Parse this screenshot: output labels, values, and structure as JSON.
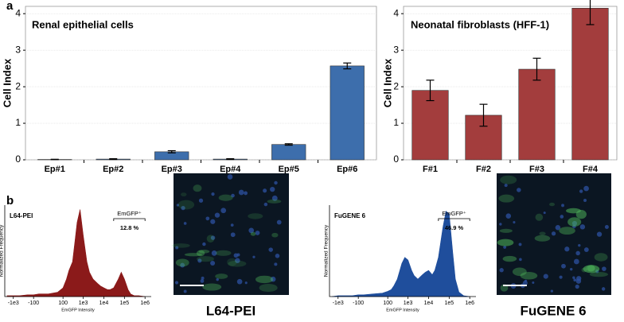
{
  "panel_labels": [
    "a",
    "b"
  ],
  "image_captions": [
    "L64-PEI",
    "FuGENE 6"
  ],
  "chart_data": [
    {
      "type": "bar",
      "title": "Renal epithelial cells",
      "ylabel": "Cell Index",
      "categories": [
        "Ep#1",
        "Ep#2",
        "Ep#3",
        "Ep#4",
        "Ep#5",
        "Ep#6"
      ],
      "values": [
        0.01,
        0.02,
        0.22,
        0.02,
        0.42,
        2.57
      ],
      "errors": [
        0.005,
        0.01,
        0.03,
        0.01,
        0.02,
        0.08
      ],
      "color": "#3d6eac",
      "ylim": [
        0,
        4.2
      ],
      "yticks": [
        0,
        1,
        2,
        3,
        4
      ],
      "grid": true
    },
    {
      "type": "bar",
      "title": "Neonatal fibroblasts (HFF-1)",
      "ylabel": "Cell Index",
      "categories": [
        "F#1",
        "F#2",
        "F#3",
        "F#4"
      ],
      "values": [
        1.9,
        1.22,
        2.48,
        4.15
      ],
      "errors": [
        0.28,
        0.3,
        0.3,
        0.45
      ],
      "color": "#a33d3d",
      "ylim": [
        0,
        4.2
      ],
      "yticks": [
        0,
        1,
        2,
        3,
        4
      ],
      "grid": true
    },
    {
      "type": "area",
      "title": "L64-PEI",
      "xlabel": "EmGFP Intensity",
      "ylabel": "Normalized Frequency",
      "xscale": "logicle",
      "x": [
        -2000,
        -1000,
        -500,
        -200,
        -100,
        -50,
        0,
        50,
        100,
        150,
        200,
        300,
        400,
        500,
        700,
        1000,
        1500,
        2000,
        3000,
        5000,
        7000,
        10000,
        15000,
        20000,
        30000,
        50000,
        70000,
        100000,
        150000,
        200000,
        300000,
        500000,
        1000000
      ],
      "values": [
        0.01,
        0.01,
        0.01,
        0.02,
        0.02,
        0.03,
        0.03,
        0.05,
        0.1,
        0.2,
        0.3,
        0.4,
        0.65,
        0.85,
        1.0,
        0.7,
        0.4,
        0.28,
        0.2,
        0.15,
        0.12,
        0.1,
        0.08,
        0.08,
        0.1,
        0.2,
        0.28,
        0.2,
        0.08,
        0.03,
        0.01,
        0.01,
        0
      ],
      "color": "#8b1a1a",
      "xlim": [
        -2600,
        2000000
      ],
      "ylim": [
        0,
        1.05
      ],
      "xticks": [
        {
          "value": -1000,
          "label": "-1e3"
        },
        -100,
        100,
        {
          "value": 1000,
          "label": "1e3"
        },
        {
          "value": 10000,
          "label": "1e4"
        },
        {
          "value": 100000,
          "label": "1e5"
        },
        {
          "value": 1000000,
          "label": "1e6"
        }
      ],
      "gate": {
        "label": "EmGFP⁺",
        "range": [
          30000,
          1000000
        ],
        "text": "12.8 %"
      }
    },
    {
      "type": "area",
      "title": "FuGENE 6",
      "xlabel": "EmGFP Intensity",
      "ylabel": "Normalized Frequency",
      "xscale": "logicle",
      "x": [
        -2000,
        -1000,
        -500,
        -200,
        -100,
        -50,
        0,
        50,
        100,
        150,
        200,
        300,
        400,
        500,
        700,
        1000,
        1500,
        2000,
        3000,
        5000,
        7000,
        10000,
        15000,
        20000,
        30000,
        50000,
        70000,
        100000,
        150000,
        200000,
        300000,
        500000,
        1000000
      ],
      "values": [
        0,
        0.01,
        0.01,
        0.01,
        0.02,
        0.02,
        0.03,
        0.04,
        0.06,
        0.08,
        0.12,
        0.2,
        0.3,
        0.38,
        0.45,
        0.42,
        0.3,
        0.24,
        0.2,
        0.25,
        0.28,
        0.3,
        0.25,
        0.3,
        0.45,
        0.8,
        0.98,
        0.95,
        0.5,
        0.2,
        0.05,
        0.01,
        0
      ],
      "color": "#1f4e9c",
      "xlim": [
        -2600,
        2000000
      ],
      "ylim": [
        0,
        1.05
      ],
      "xticks": [
        {
          "value": -1000,
          "label": "-1e3"
        },
        -100,
        100,
        {
          "value": 1000,
          "label": "1e3"
        },
        {
          "value": 10000,
          "label": "1e4"
        },
        {
          "value": 100000,
          "label": "1e5"
        },
        {
          "value": 1000000,
          "label": "1e6"
        }
      ],
      "gate": {
        "label": "EmGFP⁺",
        "range": [
          30000,
          1000000
        ],
        "text": "46.9 %"
      }
    }
  ]
}
